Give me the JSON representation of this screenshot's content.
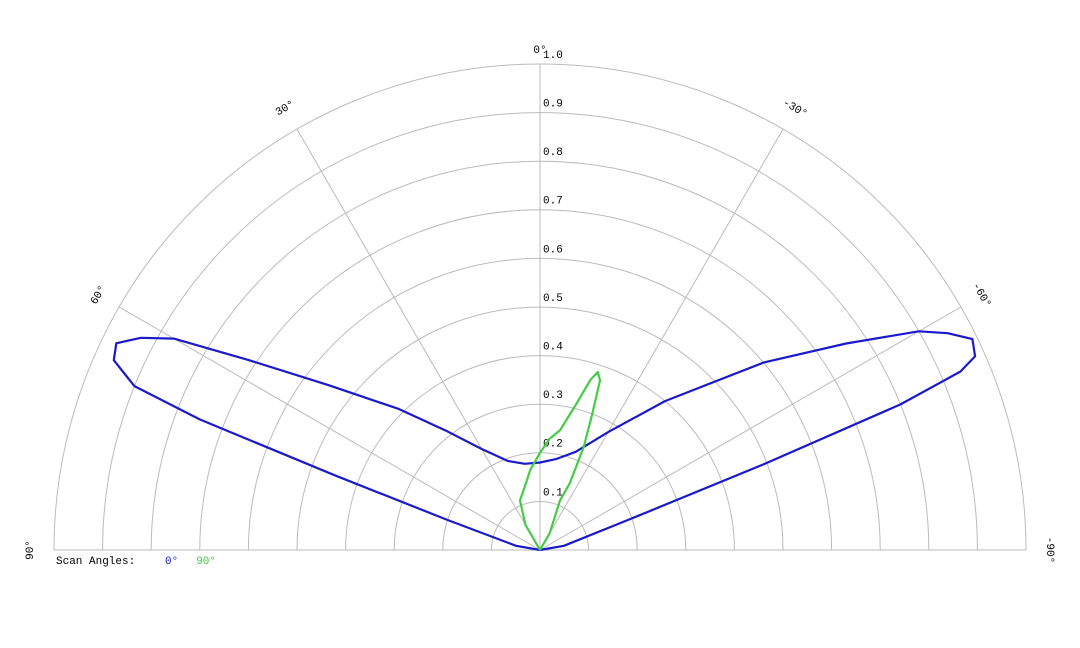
{
  "chart_data": {
    "type": "polar",
    "rlim": [
      0,
      1
    ],
    "rticks": [
      0.1,
      0.2,
      0.3,
      0.4,
      0.5,
      0.6,
      0.7,
      0.8,
      0.9,
      {
        "value": 1,
        "label": "1.0"
      }
    ],
    "thetaticks": [
      {
        "value": 90,
        "label": "90°"
      },
      {
        "value": 60,
        "label": "60°"
      },
      {
        "value": 30,
        "label": "30°"
      },
      {
        "value": 0,
        "label": "0°"
      },
      {
        "value": -30,
        "label": "-30°"
      },
      {
        "value": -60,
        "label": "-60°"
      },
      {
        "value": -90,
        "label": "-90°"
      }
    ],
    "grid": true,
    "legend_title": "Scan Angles:",
    "series": [
      {
        "name": "0°",
        "color": "#1a1acc",
        "x": [
          90,
          80,
          72,
          70,
          69,
          68,
          66,
          64,
          62,
          60,
          57,
          52,
          45,
          38,
          30,
          20,
          10,
          0,
          -10,
          -20,
          -30,
          -40,
          -50,
          -56,
          -60,
          -62,
          -64,
          -66,
          -67,
          -68,
          -69,
          -71,
          -80,
          -90
        ],
        "values": [
          0,
          0.05,
          0.2,
          0.45,
          0.75,
          0.9,
          0.96,
          0.97,
          0.93,
          0.87,
          0.72,
          0.55,
          0.41,
          0.31,
          0.24,
          0.195,
          0.18,
          0.18,
          0.19,
          0.215,
          0.28,
          0.4,
          0.6,
          0.76,
          0.9,
          0.95,
          0.99,
          0.98,
          0.94,
          0.8,
          0.5,
          0.2,
          0.05,
          0
        ]
      },
      {
        "name": "90°",
        "color": "#44cc44",
        "x": [
          90,
          30,
          22,
          12,
          7,
          0,
          -5,
          -9.5,
          -14,
          -16.5,
          -18,
          -19.5,
          -21,
          -23,
          -24,
          -22,
          -30,
          -90
        ],
        "values": [
          0,
          0.06,
          0.11,
          0.14,
          0.166,
          0.2,
          0.23,
          0.25,
          0.31,
          0.365,
          0.385,
          0.37,
          0.3,
          0.23,
          0.15,
          0.11,
          0.04,
          0
        ]
      }
    ]
  }
}
